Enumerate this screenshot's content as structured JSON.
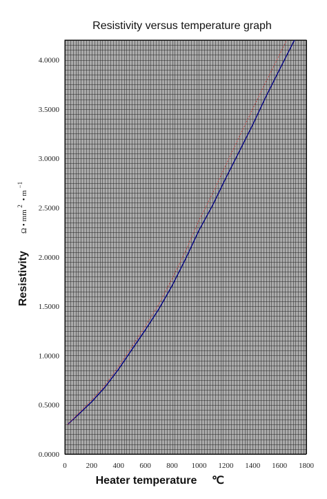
{
  "chart_data": {
    "type": "line",
    "title": "Resistivity versus temperature graph",
    "xlabel": "Heater temperature",
    "xlabel_unit": "℃",
    "ylabel": "Resistivity",
    "ylabel_unit": {
      "prefix": "Ω • mm",
      "sup1": "2",
      "mid": "• m",
      "sup2": "−1"
    },
    "xlim": [
      0,
      1800
    ],
    "ylim": [
      0,
      4.2
    ],
    "xticks": [
      "0",
      "200",
      "400",
      "600",
      "800",
      "1000",
      "1200",
      "1400",
      "1600",
      "1800"
    ],
    "yticks": [
      "0.0000",
      "0.5000",
      "1.0000",
      "1.5000",
      "2.0000",
      "2.5000",
      "3.0000",
      "3.5000",
      "4.0000"
    ],
    "grid": true,
    "series": [
      {
        "color": "#000080",
        "style": "solid",
        "x": [
          20,
          100,
          200,
          300,
          400,
          500,
          600,
          700,
          800,
          900,
          1000,
          1100,
          1200,
          1300,
          1400,
          1500,
          1600,
          1700,
          1780
        ],
        "y": [
          0.3,
          0.4,
          0.53,
          0.68,
          0.86,
          1.06,
          1.26,
          1.47,
          1.71,
          1.98,
          2.27,
          2.52,
          2.8,
          3.07,
          3.34,
          3.63,
          3.9,
          4.17,
          4.38
        ]
      },
      {
        "color": "#c04040",
        "style": "dotted",
        "x": [
          20,
          100,
          200,
          300,
          400,
          500,
          600,
          700,
          800,
          900,
          1000,
          1100,
          1200,
          1300,
          1400,
          1500,
          1600,
          1700
        ],
        "y": [
          0.3,
          0.41,
          0.55,
          0.7,
          0.89,
          1.09,
          1.3,
          1.52,
          1.78,
          2.06,
          2.37,
          2.64,
          2.93,
          3.22,
          3.5,
          3.78,
          4.05,
          4.33
        ]
      }
    ]
  },
  "colors": {
    "plot_background": "#ababab",
    "grid_line": "#222222",
    "axis": "#000000"
  }
}
